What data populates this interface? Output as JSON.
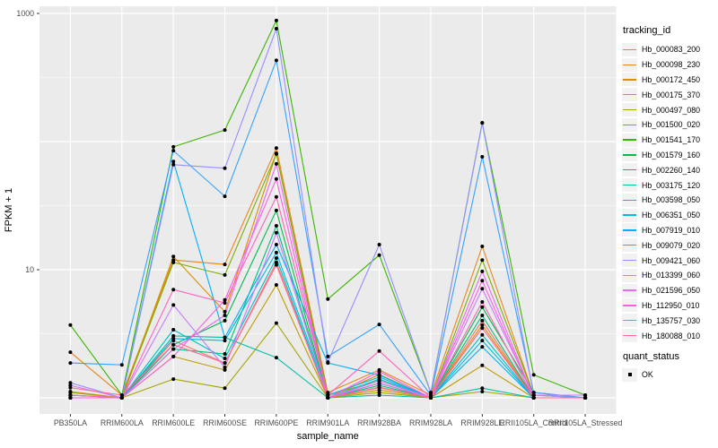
{
  "figure": {
    "background": "#ffffff",
    "panel_background": "#ebebeb",
    "grid_color": "#ffffff",
    "point_color": "#000000",
    "tick_color": "#333333",
    "tick_label_color": "#4d4d4d"
  },
  "legend": {
    "tracking_title": "tracking_id",
    "quant_title": "quant_status",
    "quant_items": [
      {
        "label": "OK"
      }
    ]
  },
  "chart_data": {
    "type": "line",
    "title": "",
    "xlabel": "sample_name",
    "ylabel": "FPKM + 1",
    "y_scale": "log10",
    "grid": true,
    "legend_position": "right",
    "ylim": [
      0.85,
      1150
    ],
    "y_major_gridlines": [
      1,
      10,
      100,
      1000
    ],
    "y_minor_gridlines": [
      3.162,
      31.62,
      316.2
    ],
    "y_ticks": [
      {
        "label": "1000",
        "value": 1000
      },
      {
        "label": "10",
        "value": 10
      }
    ],
    "x": [
      "PB350LA",
      "RRIM600LA",
      "RRIM600LE",
      "RRIM600SE",
      "RRIM600PE",
      "RRIM901LA",
      "RRIM928BA",
      "RRIM928LA",
      "RRIM928LE",
      "RRII105LA_Control",
      "RRII105LA_Stressed"
    ],
    "series": [
      {
        "name": "Hb_000083_200",
        "color": "#F8766D",
        "values": [
          1.05,
          1.0,
          2.8,
          1.87,
          11.4,
          1.0,
          1.21,
          1.0,
          4.0,
          1.0,
          1.0
        ]
      },
      {
        "name": "Hb_000098_230",
        "color": "#E8851E",
        "values": [
          2.27,
          1.05,
          11.9,
          11.0,
          89,
          1.1,
          1.65,
          1.05,
          15.2,
          1.05,
          1.0
        ]
      },
      {
        "name": "Hb_000172_450",
        "color": "#D89000",
        "values": [
          1.12,
          1.0,
          12.7,
          4.7,
          81,
          1.0,
          1.52,
          1.0,
          3.7,
          1.0,
          1.0
        ]
      },
      {
        "name": "Hb_000175_370",
        "color": "#C09B00",
        "values": [
          1.0,
          1.0,
          2.1,
          1.65,
          7.6,
          1.0,
          1.15,
          1.0,
          1.79,
          1.0,
          1.0
        ]
      },
      {
        "name": "Hb_000497_080",
        "color": "#A3A500",
        "values": [
          1.1,
          1.0,
          1.4,
          1.19,
          3.83,
          1.0,
          1.1,
          1.0,
          1.12,
          1.0,
          1.0
        ]
      },
      {
        "name": "Hb_001500_020",
        "color": "#7CAE00",
        "values": [
          1.05,
          1.0,
          11.4,
          9.1,
          80,
          1.05,
          1.36,
          1.0,
          11.9,
          1.05,
          1.0
        ]
      },
      {
        "name": "Hb_001541_170",
        "color": "#39B600",
        "values": [
          3.7,
          1.05,
          91,
          123,
          880,
          5.9,
          13.0,
          1.1,
          140,
          1.51,
          1.05
        ]
      },
      {
        "name": "Hb_001579_160",
        "color": "#00BB4E",
        "values": [
          1.0,
          1.0,
          2.6,
          4.0,
          29,
          1.0,
          1.3,
          1.0,
          5.1,
          1.1,
          1.0
        ]
      },
      {
        "name": "Hb_002260_140",
        "color": "#00BF7D",
        "values": [
          1.0,
          1.0,
          2.4,
          2.2,
          22,
          1.0,
          1.25,
          1.0,
          4.4,
          1.0,
          1.0
        ]
      },
      {
        "name": "Hb_003175_120",
        "color": "#00C1A3",
        "values": [
          1.0,
          1.0,
          3.04,
          2.96,
          2.06,
          1.0,
          1.05,
          1.0,
          1.19,
          1.0,
          1.0
        ]
      },
      {
        "name": "Hb_003598_050",
        "color": "#00BFC4",
        "values": [
          1.0,
          1.0,
          3.4,
          2.03,
          12.3,
          1.0,
          1.4,
          1.0,
          3.1,
          1.0,
          1.0
        ]
      },
      {
        "name": "Hb_006351_050",
        "color": "#00BAE0",
        "values": [
          1.0,
          1.0,
          2.9,
          2.8,
          13.6,
          1.05,
          1.45,
          1.0,
          2.8,
          1.0,
          1.0
        ]
      },
      {
        "name": "Hb_007919_010",
        "color": "#00B0F6",
        "values": [
          1.0,
          1.0,
          70,
          2.96,
          15.7,
          1.87,
          1.5,
          1.0,
          2.5,
          1.0,
          1.0
        ]
      },
      {
        "name": "Hb_009079_020",
        "color": "#35A2FF",
        "values": [
          1.87,
          1.81,
          85,
          37.4,
          430,
          2.1,
          3.74,
          1.05,
          76,
          1.1,
          1.0
        ]
      },
      {
        "name": "Hb_009421_060",
        "color": "#9590FF",
        "values": [
          1.31,
          1.0,
          66,
          62,
          760,
          1.9,
          15.7,
          1.1,
          140,
          1.05,
          1.0
        ]
      },
      {
        "name": "Hb_013399_060",
        "color": "#C77CFF",
        "values": [
          1.25,
          1.0,
          5.3,
          1.73,
          19.4,
          1.0,
          1.36,
          1.0,
          7.1,
          1.05,
          1.05
        ]
      },
      {
        "name": "Hb_021596_050",
        "color": "#E76BF3",
        "values": [
          1.05,
          1.0,
          2.4,
          4.4,
          67,
          1.0,
          1.3,
          1.0,
          9.7,
          1.0,
          1.0
        ]
      },
      {
        "name": "Hb_112950_010",
        "color": "#FA62DB",
        "values": [
          1.0,
          1.0,
          2.1,
          5.8,
          51,
          1.0,
          1.6,
          1.0,
          8.2,
          1.0,
          1.0
        ]
      },
      {
        "name": "Hb_135757_030",
        "color": "#FF62BC",
        "values": [
          1.05,
          1.0,
          7.0,
          5.5,
          37,
          1.05,
          2.32,
          1.0,
          5.6,
          1.0,
          1.0
        ]
      },
      {
        "name": "Hb_180088_010",
        "color": "#FF6A98",
        "values": [
          1.2,
          1.05,
          2.6,
          1.87,
          10.9,
          1.0,
          1.2,
          1.0,
          3.5,
          1.0,
          1.0
        ]
      }
    ]
  }
}
